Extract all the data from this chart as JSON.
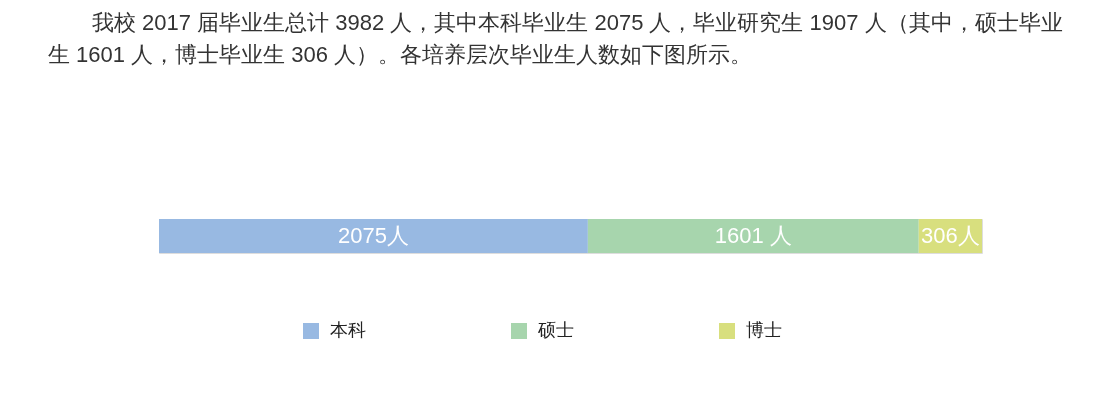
{
  "chart_data": {
    "type": "bar",
    "orientation": "horizontal",
    "stacked": true,
    "title": "我校 2017 届毕业生总计 3982 人，其中本科毕业生 2075 人，毕业研究生 1907 人（其中，硕士毕业生 1601 人，博士毕业生 306 人）。各培养层次毕业生人数如下图所示。",
    "categories": [
      null
    ],
    "series": [
      {
        "name": "本科",
        "color": "#98b9e2",
        "values": [
          2075
        ],
        "value_labels": [
          "2075人"
        ]
      },
      {
        "name": "硕士",
        "color": "#a7d5ad",
        "values": [
          1601
        ],
        "value_labels": [
          "1601 人"
        ]
      },
      {
        "name": "博士",
        "color": "#d8df7e",
        "values": [
          306
        ],
        "value_labels": [
          "306人"
        ]
      }
    ],
    "legend": "bottom",
    "tick_labels": false
  }
}
